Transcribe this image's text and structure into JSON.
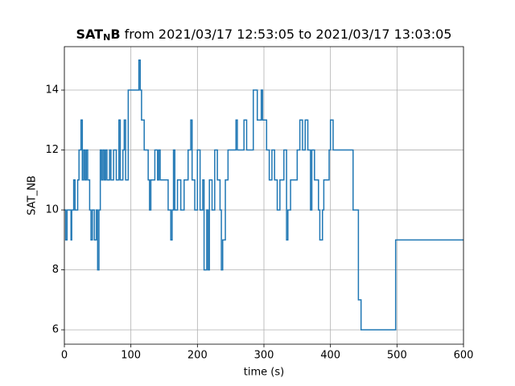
{
  "chart_data": {
    "type": "line",
    "title": {
      "bold": "SAT",
      "subscript": "N",
      "bold_after": "B",
      "rest": " from 2021/03/17 12:53:05 to 2021/03/17 13:03:05"
    },
    "x_label": "time (s)",
    "y_label": "SAT_NB",
    "drawstyle": "steps-post",
    "grid": true,
    "xlim": [
      0,
      600
    ],
    "xticks": [
      0,
      100,
      200,
      300,
      400,
      500,
      600
    ],
    "ylim": [
      5.52,
      15.45
    ],
    "yticks": [
      6,
      8,
      10,
      12,
      14
    ],
    "series": [
      {
        "color": "#1f77b4",
        "x": [
          0,
          2,
          4,
          10,
          11,
          14,
          16,
          20,
          22,
          25,
          27,
          29,
          31,
          33,
          35,
          38,
          40,
          42,
          45,
          48,
          50,
          52,
          54,
          56,
          58,
          60,
          62,
          64,
          68,
          70,
          74,
          78,
          82,
          84,
          88,
          90,
          92,
          96,
          110,
          112,
          114,
          116,
          120,
          126,
          128,
          130,
          136,
          140,
          142,
          144,
          156,
          160,
          162,
          164,
          166,
          170,
          175,
          180,
          186,
          190,
          192,
          196,
          200,
          204,
          208,
          210,
          214,
          216,
          218,
          222,
          226,
          230,
          234,
          236,
          238,
          242,
          246,
          258,
          260,
          270,
          274,
          284,
          290,
          296,
          298,
          304,
          308,
          312,
          316,
          320,
          324,
          330,
          334,
          336,
          340,
          350,
          354,
          358,
          362,
          366,
          370,
          372,
          376,
          382,
          384,
          388,
          390,
          398,
          400,
          404,
          410,
          434,
          442,
          446,
          498,
          600
        ],
        "values": [
          10,
          9,
          10,
          9,
          10,
          11,
          10,
          11,
          12,
          13,
          11,
          12,
          11,
          12,
          11,
          10,
          9,
          10,
          9,
          10,
          8,
          10,
          12,
          11,
          12,
          11,
          12,
          11,
          12,
          11,
          12,
          11,
          13,
          11,
          12,
          13,
          11,
          14,
          14,
          15,
          14,
          13,
          12,
          11,
          10,
          11,
          12,
          11,
          12,
          11,
          10,
          9,
          10,
          12,
          10,
          11,
          10,
          11,
          12,
          13,
          11,
          10,
          12,
          10,
          11,
          8,
          10,
          8,
          11,
          10,
          12,
          11,
          10,
          8,
          9,
          11,
          12,
          13,
          12,
          13,
          12,
          14,
          13,
          14,
          13,
          12,
          11,
          12,
          11,
          10,
          11,
          12,
          9,
          10,
          11,
          12,
          13,
          12,
          13,
          12,
          10,
          12,
          11,
          10,
          9,
          10,
          11,
          12,
          13,
          12,
          12,
          10,
          7,
          6,
          9,
          9
        ]
      }
    ]
  }
}
